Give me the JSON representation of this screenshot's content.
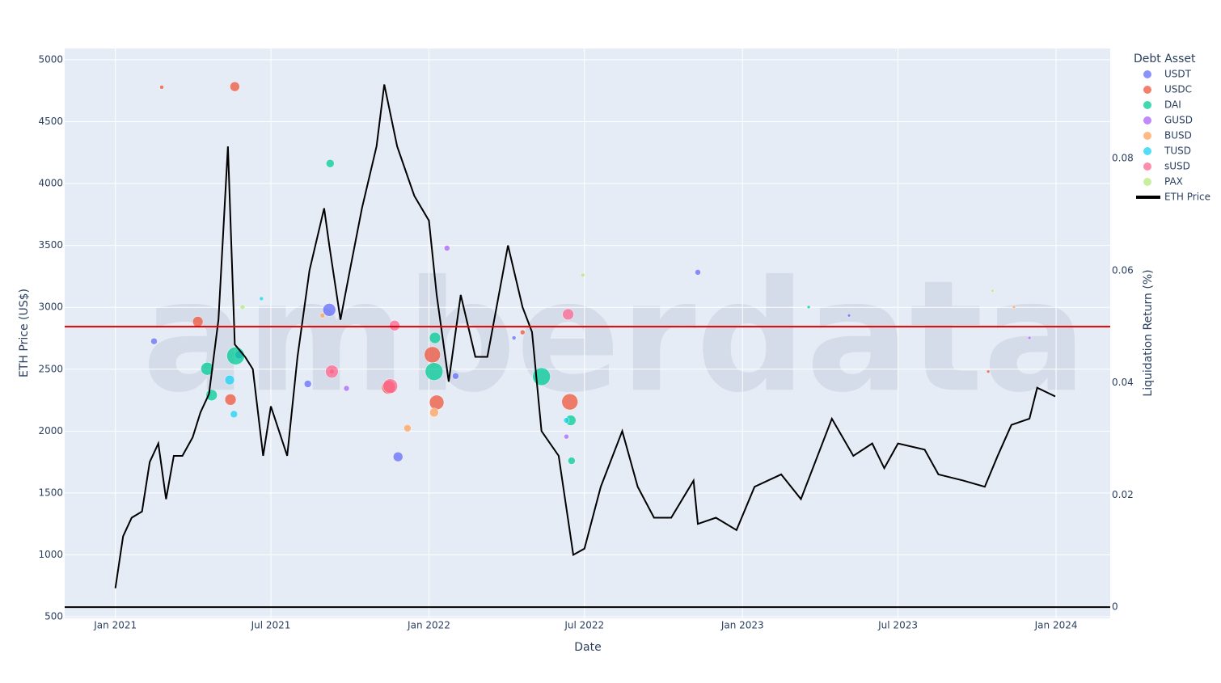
{
  "chart_data": {
    "type": "scatter_line",
    "watermark": "amberdata",
    "x_label": "Date",
    "y_label": "ETH Price (US$)",
    "y2_label": "Liquidation Return (%)",
    "legend_title": "Debt Asset",
    "legend_position": "right",
    "grid": true,
    "xlim": [
      "2020-11-03",
      "2024-03-04"
    ],
    "xticks": [
      {
        "value": "2021-01-01",
        "label": "Jan 2021"
      },
      {
        "value": "2021-07-01",
        "label": "Jul 2021"
      },
      {
        "value": "2022-01-01",
        "label": "Jan 2022"
      },
      {
        "value": "2022-07-01",
        "label": "Jul 2022"
      },
      {
        "value": "2023-01-01",
        "label": "Jan 2023"
      },
      {
        "value": "2023-07-01",
        "label": "Jul 2023"
      },
      {
        "value": "2024-01-01",
        "label": "Jan 2024"
      }
    ],
    "ylim": [
      487,
      5091
    ],
    "yticks": [
      500,
      1000,
      1500,
      2000,
      2500,
      3000,
      3500,
      4000,
      4500,
      5000
    ],
    "y2lim": [
      -0.002,
      0.0996
    ],
    "y2ticks": [
      0,
      0.02,
      0.04,
      0.06,
      0.08
    ],
    "hlines": [
      {
        "value": 0.05,
        "color": "#dd0000",
        "axis": "y2"
      },
      {
        "value": 0,
        "color": "#000000",
        "axis": "y2"
      }
    ],
    "series": [
      {
        "name": "USDT",
        "color": "#636efa",
        "axis": "y2",
        "x": [
          "2021-09-07",
          "2021-11-26",
          "2022-11-10",
          "2021-02-15",
          "2021-08-13",
          "2022-02-01",
          "2023-05-05",
          "2021-05-25",
          "2022-04-10"
        ],
        "values": [
          0.053,
          0.0268,
          0.0597,
          0.0474,
          0.0398,
          0.0412,
          0.052,
          0.045,
          0.048
        ],
        "sizes": [
          16,
          12,
          7,
          8,
          9,
          8,
          4,
          10,
          5
        ]
      },
      {
        "name": "USDC",
        "color": "#ef553b",
        "axis": "y2",
        "x": [
          "2021-05-20",
          "2021-04-07",
          "2021-11-15",
          "2022-01-10",
          "2022-06-14",
          "2021-09-10",
          "2021-02-24",
          "2023-10-14",
          "2022-04-20",
          "2021-05-15",
          "2022-01-05"
        ],
        "values": [
          0.0928,
          0.0509,
          0.0392,
          0.0365,
          0.0366,
          0.042,
          0.0927,
          0.042,
          0.049,
          0.037,
          0.045
        ],
        "sizes": [
          12,
          13,
          17,
          18,
          20,
          6,
          5,
          4,
          6,
          14,
          20
        ]
      },
      {
        "name": "DAI",
        "color": "#00cc96",
        "axis": "y2",
        "x": [
          "2021-04-18",
          "2021-04-23",
          "2021-05-21",
          "2021-09-08",
          "2022-01-07",
          "2022-05-12",
          "2022-06-15",
          "2022-06-16",
          "2023-03-19",
          "2022-01-08"
        ],
        "values": [
          0.0425,
          0.0378,
          0.0448,
          0.0791,
          0.042,
          0.0411,
          0.0333,
          0.0261,
          0.0535,
          0.048
        ],
        "sizes": [
          16,
          14,
          22,
          10,
          22,
          22,
          13,
          9,
          4,
          14
        ]
      },
      {
        "name": "GUSD",
        "color": "#ab63fa",
        "axis": "y2",
        "x": [
          "2022-01-22",
          "2021-09-27",
          "2022-06-10",
          "2023-12-01"
        ],
        "values": [
          0.064,
          0.039,
          0.0304,
          0.048
        ],
        "sizes": [
          7,
          7,
          6,
          4
        ]
      },
      {
        "name": "BUSD",
        "color": "#ffa15a",
        "axis": "y2",
        "x": [
          "2022-01-07",
          "2021-08-30",
          "2021-12-07",
          "2023-11-13"
        ],
        "values": [
          0.0347,
          0.052,
          0.0319,
          0.0535
        ],
        "sizes": [
          11,
          6,
          9,
          4
        ]
      },
      {
        "name": "TUSD",
        "color": "#19d3f3",
        "axis": "y2",
        "x": [
          "2021-05-19",
          "2021-05-14",
          "2022-06-10",
          "2021-06-20"
        ],
        "values": [
          0.0344,
          0.0405,
          0.0333,
          0.055
        ],
        "sizes": [
          9,
          12,
          7,
          5
        ]
      },
      {
        "name": "sUSD",
        "color": "#ff6692",
        "axis": "y2",
        "x": [
          "2021-11-17",
          "2021-09-10",
          "2022-06-12",
          "2021-11-22"
        ],
        "values": [
          0.0394,
          0.042,
          0.0522,
          0.0502
        ],
        "sizes": [
          18,
          16,
          14,
          13
        ]
      },
      {
        "name": "PAX",
        "color": "#b6e880",
        "axis": "y2",
        "x": [
          "2021-05-29",
          "2022-06-29",
          "2023-10-19"
        ],
        "values": [
          0.0535,
          0.0592,
          0.0564
        ],
        "sizes": [
          6,
          5,
          4
        ]
      }
    ],
    "line": {
      "name": "ETH Price",
      "color": "#000000",
      "x": [
        "2021-01-01",
        "2021-01-10",
        "2021-01-20",
        "2021-02-01",
        "2021-02-10",
        "2021-02-20",
        "2021-03-01",
        "2021-03-10",
        "2021-03-20",
        "2021-04-01",
        "2021-04-10",
        "2021-04-20",
        "2021-05-01",
        "2021-05-12",
        "2021-05-20",
        "2021-06-01",
        "2021-06-10",
        "2021-06-22",
        "2021-07-01",
        "2021-07-20",
        "2021-08-01",
        "2021-08-15",
        "2021-09-01",
        "2021-09-07",
        "2021-09-20",
        "2021-10-01",
        "2021-10-15",
        "2021-11-01",
        "2021-11-10",
        "2021-11-25",
        "2021-12-05",
        "2021-12-15",
        "2022-01-01",
        "2022-01-10",
        "2022-01-24",
        "2022-02-07",
        "2022-02-24",
        "2022-03-10",
        "2022-04-03",
        "2022-04-20",
        "2022-05-01",
        "2022-05-12",
        "2022-06-01",
        "2022-06-18",
        "2022-07-01",
        "2022-07-20",
        "2022-08-14",
        "2022-09-01",
        "2022-09-20",
        "2022-10-10",
        "2022-11-05",
        "2022-11-10",
        "2022-12-01",
        "2022-12-25",
        "2023-01-15",
        "2023-02-15",
        "2023-03-10",
        "2023-04-15",
        "2023-05-10",
        "2023-06-01",
        "2023-06-15",
        "2023-07-01",
        "2023-08-01",
        "2023-08-17",
        "2023-09-15",
        "2023-10-10",
        "2023-10-25",
        "2023-11-10",
        "2023-12-01",
        "2023-12-10",
        "2023-12-25",
        "2023-12-31"
      ],
      "values": [
        730,
        1150,
        1300,
        1350,
        1750,
        1900,
        1450,
        1800,
        1800,
        1950,
        2150,
        2300,
        2900,
        4300,
        2700,
        2600,
        2500,
        1800,
        2200,
        1800,
        2600,
        3300,
        3800,
        3500,
        2900,
        3300,
        3800,
        4300,
        4800,
        4300,
        4100,
        3900,
        3700,
        3100,
        2400,
        3100,
        2600,
        2600,
        3500,
        3000,
        2800,
        2000,
        1800,
        1000,
        1050,
        1550,
        2000,
        1550,
        1300,
        1300,
        1600,
        1250,
        1300,
        1200,
        1550,
        1650,
        1450,
        2100,
        1800,
        1900,
        1700,
        1900,
        1850,
        1650,
        1600,
        1550,
        1800,
        2050,
        2100,
        2350,
        2300,
        2280
      ]
    }
  }
}
